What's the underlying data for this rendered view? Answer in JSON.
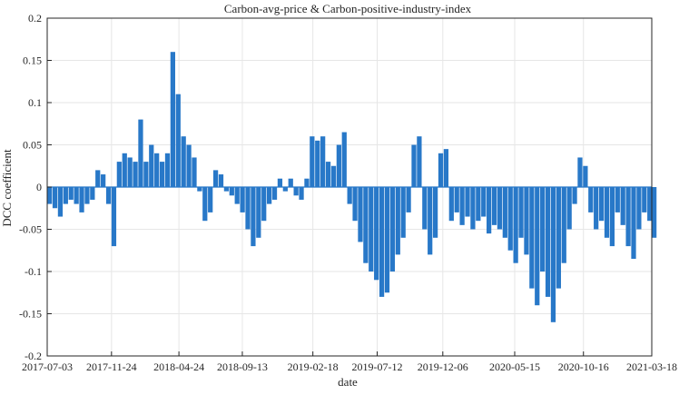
{
  "chart_data": {
    "type": "bar",
    "title": "Carbon-avg-price & Carbon-positive-industry-index",
    "xlabel": "date",
    "ylabel": "DCC coefficient",
    "ylim": [
      -0.2,
      0.2
    ],
    "grid": true,
    "bar_color": "#2878c8",
    "x_start": "2017-07-03",
    "x_end": "2021-03-18",
    "x_ticks": [
      "2017-07-03",
      "2017-11-24",
      "2018-04-24",
      "2018-09-13",
      "2019-02-18",
      "2019-07-12",
      "2019-12-06",
      "2020-05-15",
      "2020-10-16",
      "2021-03-18"
    ],
    "y_ticks": [
      {
        "value": 0.2,
        "label": "0.2"
      },
      {
        "value": 0.15,
        "label": "0.15"
      },
      {
        "value": 0.1,
        "label": "0.1"
      },
      {
        "value": 0.05,
        "label": "0.05"
      },
      {
        "value": 0,
        "label": "0"
      },
      {
        "value": -0.05,
        "label": "-0.05"
      },
      {
        "value": -0.1,
        "label": "-0.1"
      },
      {
        "value": -0.15,
        "label": "-0.15"
      },
      {
        "value": -0.2,
        "label": "-0.2"
      }
    ],
    "series": [
      {
        "x": [
          "2017-07-03",
          "2017-07-15",
          "2017-07-27",
          "2017-08-08",
          "2017-08-20",
          "2017-09-01",
          "2017-09-13",
          "2017-09-25",
          "2017-10-07",
          "2017-10-19",
          "2017-10-31",
          "2017-11-12",
          "2017-11-24",
          "2017-12-06",
          "2017-12-18",
          "2017-12-30",
          "2018-01-11",
          "2018-01-23",
          "2018-02-04",
          "2018-02-16",
          "2018-02-28",
          "2018-03-12",
          "2018-03-24",
          "2018-04-05",
          "2018-04-17",
          "2018-04-29",
          "2018-05-11",
          "2018-05-23",
          "2018-06-04",
          "2018-06-16",
          "2018-06-28",
          "2018-07-10",
          "2018-07-22",
          "2018-08-03",
          "2018-08-15",
          "2018-08-27",
          "2018-09-08",
          "2018-09-20",
          "2018-10-02",
          "2018-10-14",
          "2018-10-26",
          "2018-11-07",
          "2018-11-19",
          "2018-12-01",
          "2018-12-13",
          "2018-12-25",
          "2019-01-06",
          "2019-01-18",
          "2019-01-30",
          "2019-02-11",
          "2019-02-23",
          "2019-03-07",
          "2019-03-19",
          "2019-03-31",
          "2019-04-12",
          "2019-04-24",
          "2019-05-06",
          "2019-05-18",
          "2019-05-30",
          "2019-06-11",
          "2019-06-23",
          "2019-07-05",
          "2019-07-17",
          "2019-07-29",
          "2019-08-10",
          "2019-08-22",
          "2019-09-03",
          "2019-09-15",
          "2019-09-27",
          "2019-10-09",
          "2019-10-21",
          "2019-11-02",
          "2019-11-14",
          "2019-11-26",
          "2019-12-08",
          "2019-12-20",
          "2020-01-01",
          "2020-01-13",
          "2020-01-25",
          "2020-02-06",
          "2020-02-18",
          "2020-03-01",
          "2020-03-13",
          "2020-03-25",
          "2020-04-06",
          "2020-04-18",
          "2020-04-30",
          "2020-05-12",
          "2020-05-24",
          "2020-06-05",
          "2020-06-17",
          "2020-06-29",
          "2020-07-11",
          "2020-07-23",
          "2020-08-04",
          "2020-08-16",
          "2020-08-28",
          "2020-09-09",
          "2020-09-21",
          "2020-10-03",
          "2020-10-15",
          "2020-10-27",
          "2020-11-08",
          "2020-11-20",
          "2020-12-02",
          "2020-12-14",
          "2020-12-26",
          "2021-01-07",
          "2021-01-19",
          "2021-01-31",
          "2021-02-12",
          "2021-02-24",
          "2021-03-08",
          "2021-03-18"
        ],
        "values": [
          -0.02,
          -0.025,
          -0.035,
          -0.02,
          -0.015,
          -0.02,
          -0.03,
          -0.02,
          -0.015,
          0.02,
          0.015,
          -0.02,
          -0.07,
          0.03,
          0.04,
          0.035,
          0.03,
          0.08,
          0.03,
          0.05,
          0.04,
          0.03,
          0.04,
          0.16,
          0.11,
          0.06,
          0.05,
          0.035,
          -0.005,
          -0.04,
          -0.03,
          0.02,
          0.015,
          -0.005,
          -0.01,
          -0.02,
          -0.03,
          -0.05,
          -0.07,
          -0.06,
          -0.04,
          -0.02,
          -0.015,
          0.01,
          -0.005,
          0.01,
          -0.01,
          -0.015,
          0.01,
          0.06,
          0.055,
          0.06,
          0.03,
          0.025,
          0.05,
          0.065,
          -0.02,
          -0.04,
          -0.065,
          -0.09,
          -0.1,
          -0.11,
          -0.13,
          -0.125,
          -0.1,
          -0.08,
          -0.06,
          -0.03,
          0.05,
          0.06,
          -0.05,
          -0.08,
          -0.06,
          0.04,
          0.045,
          -0.04,
          -0.03,
          -0.045,
          -0.035,
          -0.05,
          -0.04,
          -0.035,
          -0.055,
          -0.045,
          -0.05,
          -0.06,
          -0.075,
          -0.09,
          -0.06,
          -0.08,
          -0.12,
          -0.14,
          -0.1,
          -0.13,
          -0.16,
          -0.12,
          -0.09,
          -0.05,
          -0.02,
          0.035,
          0.025,
          -0.03,
          -0.05,
          -0.04,
          -0.06,
          -0.07,
          -0.03,
          -0.045,
          -0.07,
          -0.085,
          -0.05,
          -0.03,
          -0.04,
          -0.06
        ]
      }
    ]
  }
}
